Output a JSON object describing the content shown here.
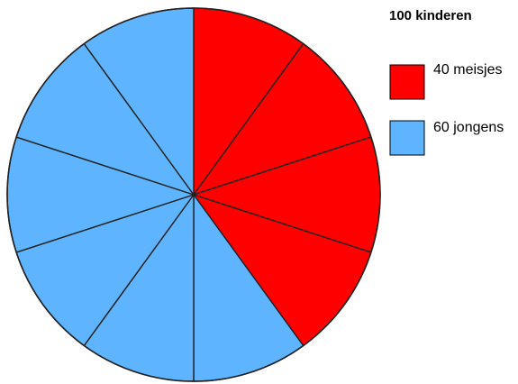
{
  "chart_data": {
    "type": "pie",
    "title": "100 kinderen",
    "slice_count": 10,
    "values_per_slice": 10,
    "series": [
      {
        "name": "40 meisjes",
        "value": 40,
        "slices": 4,
        "color": "#ff0000"
      },
      {
        "name": "60 jongens",
        "value": 60,
        "slices": 6,
        "color": "#5eb4ff"
      }
    ],
    "start_angle_deg": 0,
    "direction": "clockwise",
    "legend_position": "right"
  }
}
